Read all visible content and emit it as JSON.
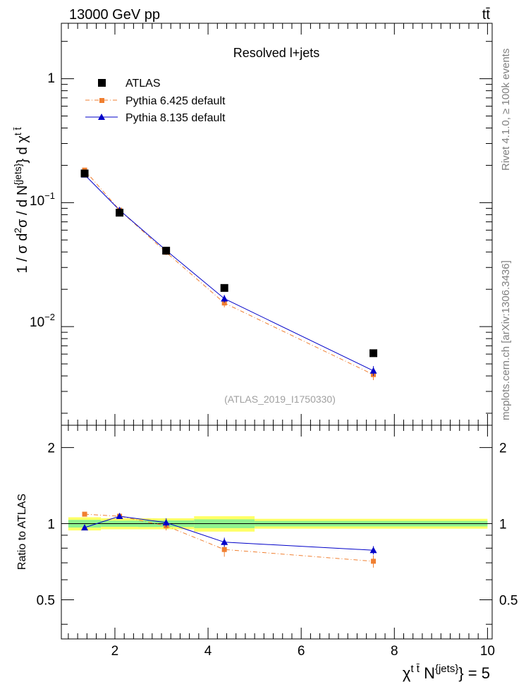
{
  "header": {
    "energy": "13000 GeV pp",
    "process": "tt̄"
  },
  "side_texts": {
    "rivet_part1": "Rivet 4.1.0, ",
    "rivet_part2": "≥ 100k events",
    "mcplots": "mcplots.cern.ch [arXiv:1306.3436]"
  },
  "colors": {
    "atlas": "#000000",
    "pythia6": "#f07f30",
    "pythia8": "#0000c8",
    "band_inner": "#8ef28e",
    "band_outer": "#ffff66"
  },
  "chart_data": [
    {
      "type": "scatter",
      "panel": "main",
      "title": "Resolved l+jets",
      "analysis_label": "(ATLAS_2019_I1750330)",
      "ylabel": {
        "p1": "1 / σ d",
        "sup1": "2",
        "p2": "σ / d N",
        "sup2": "{jets}",
        "p3": "} d χ",
        "sup3": "t t̄"
      },
      "yscale": "log",
      "xlim": [
        0.85,
        10.1
      ],
      "ylim": [
        0.0016,
        2.8
      ],
      "ytick_labels": [
        {
          "mant": "1",
          "exp": ""
        },
        {
          "mant": "10",
          "exp": "−1"
        },
        {
          "mant": "10",
          "exp": "−2"
        }
      ],
      "x": [
        1.35,
        2.1,
        3.1,
        4.35,
        7.55
      ],
      "series": [
        {
          "name": "ATLAS",
          "marker": "square",
          "line": "none",
          "values": [
            0.172,
            0.083,
            0.041,
            0.0205,
            0.0061
          ]
        },
        {
          "name": "Pythia 6.425 default",
          "marker": "square-small",
          "line": "dashdot",
          "values": [
            0.183,
            0.087,
            0.0398,
            0.0155,
            0.0041
          ],
          "err": [
            0.005,
            0.004,
            0.002,
            0.0012,
            0.0004
          ]
        },
        {
          "name": "Pythia 8.135 default",
          "marker": "triangle",
          "line": "solid",
          "values": [
            0.168,
            0.087,
            0.0412,
            0.0168,
            0.0044
          ],
          "err": [
            0.005,
            0.004,
            0.002,
            0.0012,
            0.0004
          ]
        }
      ],
      "legend_placement": "top-left"
    },
    {
      "type": "scatter",
      "panel": "ratio",
      "ylabel": "Ratio to ATLAS",
      "xlabel": {
        "p1": "χ",
        "sup1": "t t̄",
        "p2": " N",
        "sup2": "{jets}",
        "p3": "} = 5"
      },
      "ylim": [
        0.35,
        2.45
      ],
      "yticks": [
        0.5,
        1,
        2
      ],
      "ytick_labels": [
        "0.5",
        "1",
        "2"
      ],
      "xticks": [
        2,
        4,
        6,
        8,
        10
      ],
      "xtick_labels": [
        "2",
        "4",
        "6",
        "8",
        "10"
      ],
      "x": [
        1.35,
        2.1,
        3.1,
        4.35,
        7.55
      ],
      "band_bins": [
        1.0,
        1.7,
        2.5,
        3.7,
        5.0,
        10.0
      ],
      "band_inner": [
        0.035,
        0.028,
        0.03,
        0.04,
        0.025
      ],
      "band_outer": [
        0.06,
        0.05,
        0.05,
        0.07,
        0.045
      ],
      "series": [
        {
          "name": "Pythia 6.425 default",
          "values": [
            1.09,
            1.07,
            0.98,
            0.79,
            0.71
          ],
          "err": [
            0.02,
            0.025,
            0.04,
            0.05,
            0.04
          ]
        },
        {
          "name": "Pythia 8.135 default",
          "values": [
            0.965,
            1.07,
            1.01,
            0.845,
            0.785
          ],
          "err": [
            0.015,
            0.025,
            0.04,
            0.035,
            0.03
          ]
        }
      ]
    }
  ]
}
